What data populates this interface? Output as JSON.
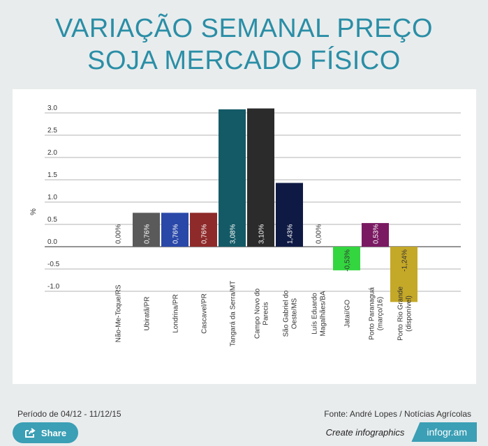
{
  "title": {
    "line1": "VARIAÇÃO SEMANAL PREÇO",
    "line2": "SOJA MERCADO FÍSICO"
  },
  "chart_data": {
    "type": "bar",
    "title": "VARIAÇÃO SEMANAL PREÇO SOJA MERCADO FÍSICO",
    "ylabel": "%",
    "xlabel": "",
    "ylim": [
      -1.25,
      3.0
    ],
    "yticks": [
      3.0,
      2.5,
      2.0,
      1.5,
      1.0,
      0.5,
      0.0,
      -0.5,
      -1.0
    ],
    "ytick_labels": [
      "3.0",
      "2.5",
      "2.0",
      "1.5",
      "1.0",
      "0.5",
      "0.0",
      "-0.5",
      "-1.0"
    ],
    "grid": true,
    "categories": [
      [
        "Não-Me-Toque/RS"
      ],
      [
        "Ubiratã/PR"
      ],
      [
        "Londrina/PR"
      ],
      [
        "Cascavel/PR"
      ],
      [
        "Tangará da Serra/MT"
      ],
      [
        "Campo Novo do",
        "Parecis"
      ],
      [
        "São Gabriel do",
        "Oeste/MS"
      ],
      [
        "Luís Eduardo",
        "Magalhães/BA"
      ],
      [
        "Jataí/GO"
      ],
      [
        "Porto Paranaguá",
        "(março/16)"
      ],
      [
        "Porto Rio Grande",
        "(disponível)"
      ]
    ],
    "values": [
      0.0,
      0.76,
      0.76,
      0.76,
      3.08,
      3.1,
      1.43,
      0.0,
      -0.53,
      0.53,
      -1.24
    ],
    "data_labels": [
      "0,00%",
      "0,76%",
      "0,76%",
      "0,76%",
      "3,08%",
      "3,10%",
      "1,43%",
      "0,00%",
      "-0,53%",
      "0,53%",
      "-1,24%"
    ],
    "colors": [
      "#888888",
      "#5a5a5a",
      "#2a48a8",
      "#8e2a2a",
      "#145a66",
      "#2b2b2b",
      "#0f1a44",
      "#888888",
      "#33d63f",
      "#7a1a62",
      "#c4a828"
    ]
  },
  "footer": {
    "period": "Período de 04/12 - 11/12/15",
    "source": "Fonte: André Lopes / Notícias Agrícolas"
  },
  "share": {
    "label": "Share",
    "icon": "share-icon"
  },
  "brand": {
    "create": "Create infographics",
    "logo": "infogr.am"
  }
}
